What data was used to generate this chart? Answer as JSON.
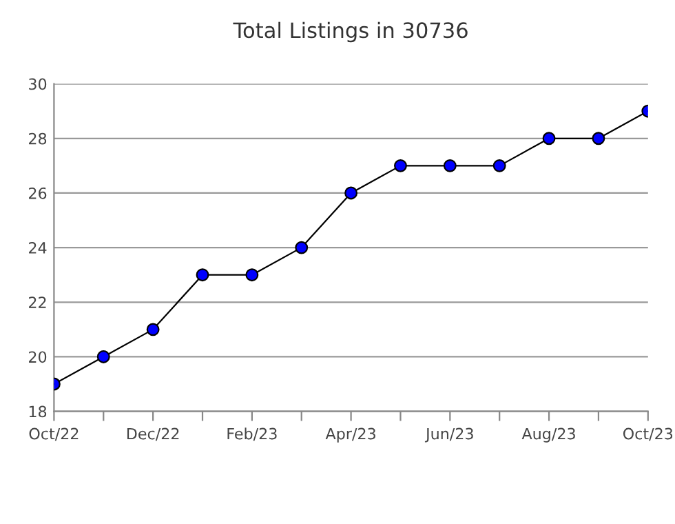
{
  "chart_data": {
    "type": "line",
    "title": "Total Listings in 30736",
    "categories": [
      "Oct/22",
      null,
      "Dec/22",
      null,
      "Feb/23",
      null,
      "Apr/23",
      null,
      "Jun/23",
      null,
      "Aug/23",
      null,
      "Oct/23"
    ],
    "series": [
      {
        "color": "#0000ff",
        "values": [
          19,
          20,
          21,
          23,
          23,
          24,
          26,
          27,
          27,
          27,
          28,
          28,
          29
        ]
      }
    ],
    "ylim": [
      18,
      30
    ],
    "yticks": [
      18,
      20,
      22,
      24,
      26,
      28,
      30
    ],
    "grid": "y",
    "marker": "circle",
    "line_style": "solid"
  }
}
